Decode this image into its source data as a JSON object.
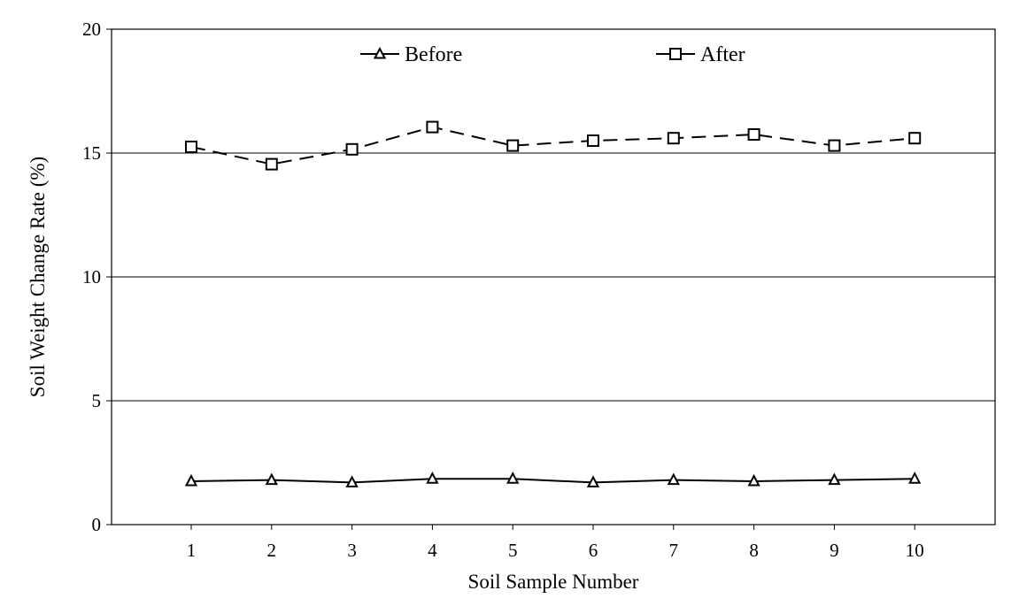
{
  "chart_data": {
    "type": "line",
    "xlabel": "Soil Sample Number",
    "ylabel": "Soil Weight Change Rate (%)",
    "categories": [
      "1",
      "2",
      "3",
      "4",
      "5",
      "6",
      "7",
      "8",
      "9",
      "10"
    ],
    "ylim": [
      0,
      20
    ],
    "yticks": [
      "0",
      "5",
      "10",
      "15",
      "20"
    ],
    "grid": "horizontal",
    "legend_position": "top",
    "series": [
      {
        "name": "Before",
        "marker": "triangle",
        "line_style": "solid",
        "color": "#000000",
        "values": [
          1.75,
          1.8,
          1.7,
          1.85,
          1.85,
          1.7,
          1.8,
          1.75,
          1.8,
          1.85
        ]
      },
      {
        "name": "After",
        "marker": "square",
        "line_style": "dashed",
        "color": "#000000",
        "values": [
          15.25,
          14.55,
          15.15,
          16.05,
          15.3,
          15.5,
          15.6,
          15.75,
          15.3,
          15.6
        ]
      }
    ]
  }
}
